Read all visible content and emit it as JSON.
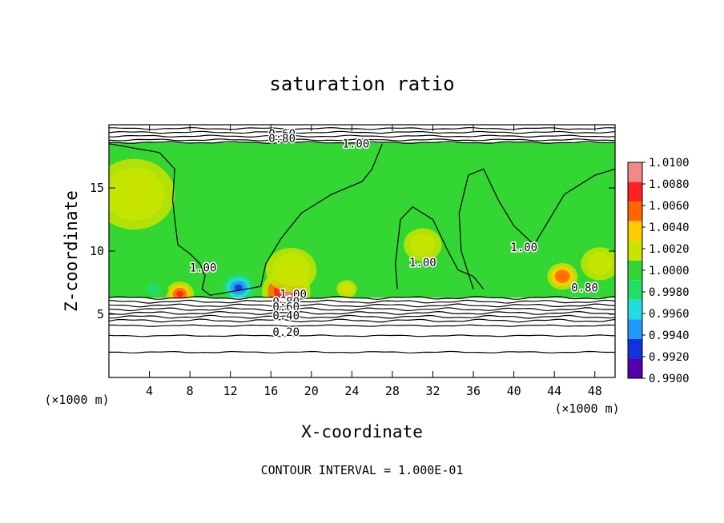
{
  "chart_data": {
    "type": "heatmap",
    "title": "saturation ratio",
    "xlabel": "X-coordinate",
    "ylabel": "Z-coordinate",
    "x_unit": "(×1000 m)",
    "xlim": [
      0,
      50
    ],
    "ylim": [
      0,
      20
    ],
    "x_ticks": [
      4,
      8,
      12,
      16,
      20,
      24,
      28,
      32,
      36,
      40,
      44,
      48
    ],
    "y_ticks": [
      5,
      10,
      15
    ],
    "footer": "CONTOUR INTERVAL = 1.000E-01",
    "colorbar": {
      "labels": [
        "1.0100",
        "1.0080",
        "1.0060",
        "1.0040",
        "1.0020",
        "1.0000",
        "0.9980",
        "0.9960",
        "0.9940",
        "0.9920",
        "0.9900"
      ],
      "colors": [
        "#f08a8a",
        "#ff2020",
        "#ff6600",
        "#ffcc00",
        "#c8e400",
        "#33d633",
        "#22dd66",
        "#22dddd",
        "#2299ff",
        "#1133dd",
        "#5500aa"
      ]
    },
    "contour_labels": [
      {
        "text": "0.60",
        "x": 17.1,
        "z": 19.0
      },
      {
        "text": "0.80",
        "x": 17.1,
        "z": 18.6
      },
      {
        "text": "1.00",
        "x": 24.4,
        "z": 18.2
      },
      {
        "text": "1.00",
        "x": 9.3,
        "z": 8.4
      },
      {
        "text": "1.00",
        "x": 31.0,
        "z": 8.8
      },
      {
        "text": "1.00",
        "x": 41.0,
        "z": 10.0
      },
      {
        "text": "0.80",
        "x": 47.0,
        "z": 6.8
      },
      {
        "text": "1.00",
        "x": 18.2,
        "z": 6.3
      },
      {
        "text": "0.80",
        "x": 17.5,
        "z": 5.7
      },
      {
        "text": "0.60",
        "x": 17.5,
        "z": 5.3
      },
      {
        "text": "0.40",
        "x": 17.5,
        "z": 4.6
      },
      {
        "text": "0.20",
        "x": 17.5,
        "z": 3.3
      }
    ],
    "contour_levels_lower": [
      6.3,
      6.0,
      5.7,
      5.4,
      5.1,
      4.8,
      4.5,
      4.1,
      3.3,
      2.0
    ],
    "contour_levels_upper": [
      18.6,
      18.8,
      19.1,
      19.4,
      19.7
    ],
    "hotspots": [
      {
        "x": 7.0,
        "z": 6.6,
        "value": 1.007,
        "radius": 1.4
      },
      {
        "x": 17.5,
        "z": 6.8,
        "value": 1.009,
        "radius": 2.4
      },
      {
        "x": 12.8,
        "z": 7.1,
        "value": 0.9935,
        "radius": 1.6
      },
      {
        "x": 4.4,
        "z": 7.0,
        "value": 0.998,
        "radius": 1.5
      },
      {
        "x": 44.8,
        "z": 8.0,
        "value": 1.006,
        "radius": 1.5
      },
      {
        "x": 2.5,
        "z": 14.5,
        "value": 1.0022,
        "radius": 4.0
      },
      {
        "x": 18.0,
        "z": 8.5,
        "value": 1.0022,
        "radius": 2.5
      },
      {
        "x": 23.5,
        "z": 7.0,
        "value": 1.003,
        "radius": 1.0
      },
      {
        "x": 48.5,
        "z": 9.0,
        "value": 1.002,
        "radius": 2.5
      },
      {
        "x": 31.0,
        "z": 10.5,
        "value": 1.0015,
        "radius": 2.5
      }
    ]
  }
}
